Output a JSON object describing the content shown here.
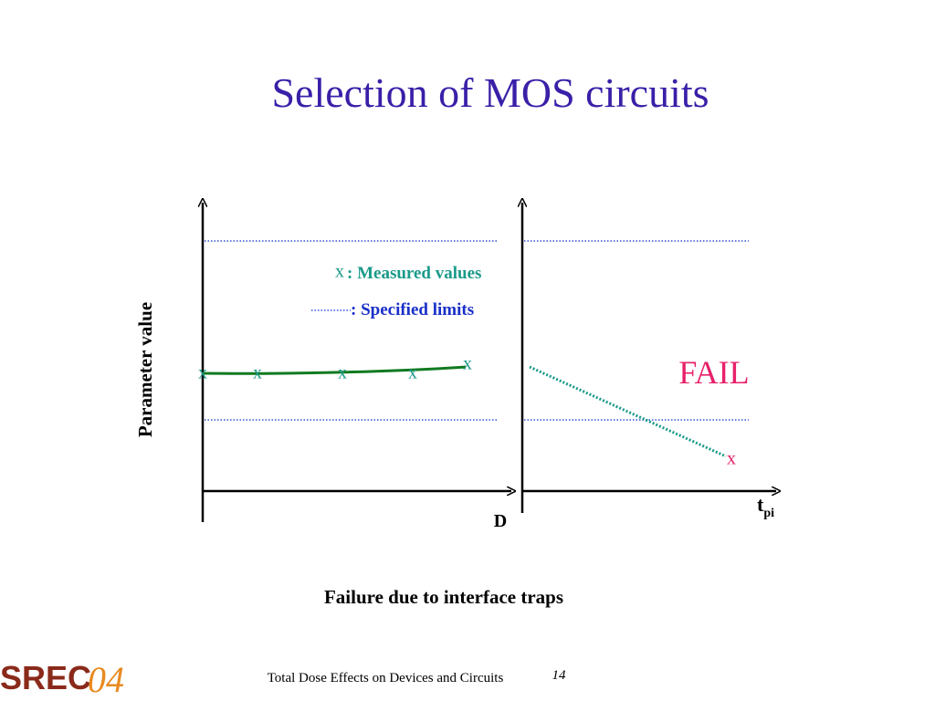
{
  "title": "Selection of MOS circuits",
  "y_axis_label": "Parameter value",
  "legend": {
    "measured_symbol": "x",
    "measured": ": Measured values",
    "limits": ": Specified limits"
  },
  "left_panel": {
    "x_label": "D",
    "markers": [
      "x",
      "x",
      "x",
      "x",
      "x"
    ]
  },
  "right_panel": {
    "x_label": "t",
    "x_label_sub": "pi",
    "status": "FAIL",
    "marker": "x"
  },
  "caption": "Failure due to interface traps",
  "footer": {
    "logo": "SREC",
    "logo_year": "04",
    "text": "Total Dose Effects on Devices and Circuits",
    "page": "14"
  }
}
